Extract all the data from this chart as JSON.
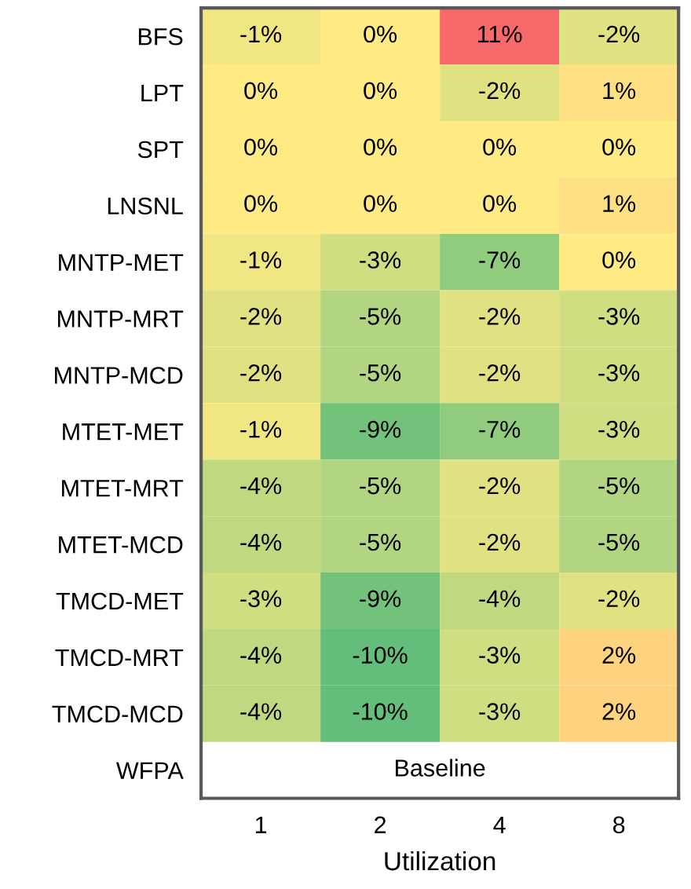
{
  "chart_data": {
    "type": "heatmap",
    "xlabel": "Utilization",
    "categories": [
      "1",
      "2",
      "4",
      "8"
    ],
    "y_categories": [
      "BFS",
      "LPT",
      "SPT",
      "LNSNL",
      "MNTP-MET",
      "MNTP-MRT",
      "MNTP-MCD",
      "MTET-MET",
      "MTET-MRT",
      "MTET-MCD",
      "TMCD-MET",
      "TMCD-MRT",
      "TMCD-MCD",
      "WFPA"
    ],
    "cells": [
      [
        -1,
        0,
        11,
        -2
      ],
      [
        0,
        0,
        -2,
        1
      ],
      [
        0,
        0,
        0,
        0
      ],
      [
        0,
        0,
        0,
        1
      ],
      [
        -1,
        -3,
        -7,
        0
      ],
      [
        -2,
        -5,
        -2,
        -3
      ],
      [
        -2,
        -5,
        -2,
        -3
      ],
      [
        -1,
        -9,
        -7,
        -3
      ],
      [
        -4,
        -5,
        -2,
        -5
      ],
      [
        -4,
        -5,
        -2,
        -5
      ],
      [
        -3,
        -9,
        -4,
        -2
      ],
      [
        -4,
        -10,
        -3,
        2
      ],
      [
        -4,
        -10,
        -3,
        2
      ],
      [
        null,
        null,
        null,
        null
      ]
    ],
    "cell_labels": [
      [
        "-1%",
        "0%",
        "11%",
        "-2%"
      ],
      [
        "0%",
        "0%",
        "-2%",
        "1%"
      ],
      [
        "0%",
        "0%",
        "0%",
        "0%"
      ],
      [
        "0%",
        "0%",
        "0%",
        "1%"
      ],
      [
        "-1%",
        "-3%",
        "-7%",
        "0%"
      ],
      [
        "-2%",
        "-5%",
        "-2%",
        "-3%"
      ],
      [
        "-2%",
        "-5%",
        "-2%",
        "-3%"
      ],
      [
        "-1%",
        "-9%",
        "-7%",
        "-3%"
      ],
      [
        "-4%",
        "-5%",
        "-2%",
        "-5%"
      ],
      [
        "-4%",
        "-5%",
        "-2%",
        "-5%"
      ],
      [
        "-3%",
        "-9%",
        "-4%",
        "-2%"
      ],
      [
        "-4%",
        "-10%",
        "-3%",
        "2%"
      ],
      [
        "-4%",
        "-10%",
        "-3%",
        "2%"
      ],
      [
        null,
        null,
        null,
        null
      ]
    ],
    "annotations": [
      "Baseline"
    ]
  }
}
